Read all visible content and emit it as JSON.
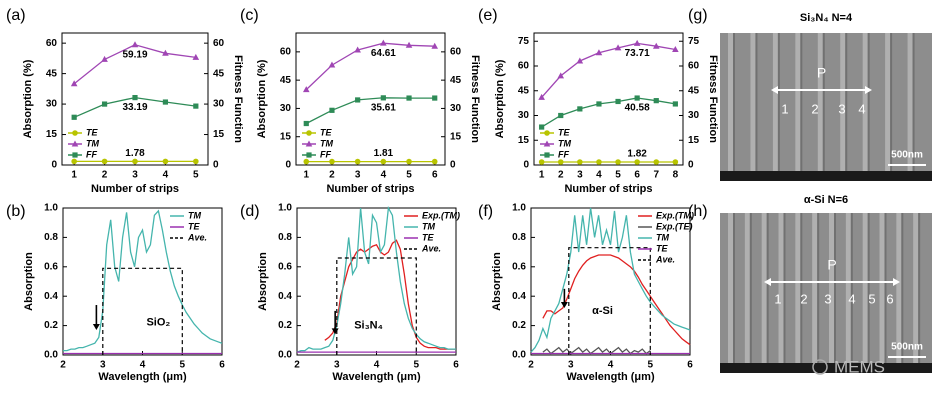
{
  "chart_data": [
    {
      "type": "line",
      "panel": "(a)",
      "x": [
        1,
        2,
        3,
        4,
        5
      ],
      "xlim": [
        0.6,
        5.4
      ],
      "xticks": [
        1,
        2,
        3,
        4,
        5
      ],
      "xlabel": "Number of strips",
      "ylabel": "Absorption (%)",
      "y2label": "Fitness Function",
      "ylim": [
        0,
        65
      ],
      "yticks": [
        0,
        15,
        30,
        45,
        60
      ],
      "y2lim": [
        0,
        65
      ],
      "y2ticks": [
        0,
        15,
        30,
        45,
        60
      ],
      "legend": "lower left",
      "data_labels": true,
      "series": [
        {
          "name": "TE",
          "color": "#b8c400",
          "marker": "circle",
          "values": [
            1.78,
            1.78,
            1.78,
            1.78,
            1.78
          ]
        },
        {
          "name": "TM",
          "color": "#a046b4",
          "marker": "triangle",
          "values": [
            40,
            52,
            59.19,
            55,
            53
          ]
        },
        {
          "name": "FF",
          "color": "#2e8b57",
          "marker": "square",
          "axis": "y2",
          "values": [
            23.5,
            30,
            33.19,
            31,
            29
          ]
        }
      ]
    },
    {
      "type": "line",
      "panel": "(b)",
      "x": [
        2,
        2.1,
        2.2,
        2.3,
        2.4,
        2.5,
        2.6,
        2.7,
        2.8,
        2.9,
        3,
        3.1,
        3.2,
        3.3,
        3.4,
        3.5,
        3.6,
        3.7,
        3.8,
        3.9,
        4,
        4.1,
        4.2,
        4.3,
        4.4,
        4.5,
        4.6,
        4.7,
        4.8,
        4.9,
        5,
        5.1,
        5.2,
        5.3,
        5.4,
        5.5,
        5.6,
        5.7,
        5.8,
        5.9,
        6
      ],
      "xlim": [
        2,
        6
      ],
      "xticks": [
        2,
        3,
        4,
        5,
        6
      ],
      "xlabel": "Wavelength (μm)",
      "ylabel": "Absorption",
      "ylim": [
        0,
        1.0
      ],
      "yticks": [
        {
          "value": 0,
          "label": "0.0"
        },
        0.2,
        0.4,
        0.6,
        0.8,
        {
          "value": 1,
          "label": "1.0"
        }
      ],
      "legend": "upper right",
      "annotation": "SiO₂",
      "series": [
        {
          "name": "TM",
          "color": "#45b5ad",
          "values": [
            0.03,
            0.03,
            0.04,
            0.04,
            0.05,
            0.05,
            0.06,
            0.07,
            0.08,
            0.12,
            0.3,
            0.75,
            0.92,
            0.6,
            0.5,
            0.8,
            0.97,
            0.7,
            0.6,
            0.8,
            0.85,
            0.7,
            0.75,
            0.95,
            0.98,
            0.85,
            0.7,
            0.57,
            0.47,
            0.4,
            0.34,
            0.29,
            0.25,
            0.21,
            0.18,
            0.15,
            0.13,
            0.11,
            0.1,
            0.09,
            0.08
          ]
        },
        {
          "name": "TE",
          "color": "#9b30b0",
          "values": [
            0.01,
            0.01,
            0.01,
            0.01,
            0.01,
            0.01,
            0.01,
            0.01,
            0.01,
            0.01,
            0.01,
            0.01,
            0.01,
            0.01,
            0.01,
            0.01,
            0.01,
            0.01,
            0.01,
            0.01,
            0.01,
            0.01,
            0.01,
            0.01,
            0.01,
            0.01,
            0.01,
            0.01,
            0.01,
            0.01,
            0.01,
            0.01,
            0.01,
            0.01,
            0.01,
            0.01,
            0.01,
            0.01,
            0.01,
            0.01,
            0.01
          ]
        },
        {
          "name": "Ave.",
          "color": "#000000",
          "dashed": true,
          "x": [
            3,
            3,
            5,
            5
          ],
          "values": [
            0,
            0.59,
            0.59,
            0
          ]
        }
      ]
    },
    {
      "type": "line",
      "panel": "(c)",
      "x": [
        1,
        2,
        3,
        4,
        5,
        6
      ],
      "xlim": [
        0.6,
        6.4
      ],
      "xticks": [
        1,
        2,
        3,
        4,
        5,
        6
      ],
      "xlabel": "Number of strips",
      "ylabel": "Absorption (%)",
      "y2label": "Fitness Function",
      "ylim": [
        0,
        70
      ],
      "yticks": [
        0,
        15,
        30,
        45,
        60
      ],
      "y2lim": [
        0,
        70
      ],
      "y2ticks": [
        0,
        15,
        30,
        45,
        60
      ],
      "legend": "lower left",
      "data_labels": true,
      "series": [
        {
          "name": "TE",
          "color": "#b8c400",
          "marker": "circle",
          "values": [
            1.81,
            1.81,
            1.81,
            1.81,
            1.81,
            1.81
          ]
        },
        {
          "name": "TM",
          "color": "#a046b4",
          "marker": "triangle",
          "values": [
            40,
            53,
            61,
            64.61,
            63.5,
            63
          ]
        },
        {
          "name": "FF",
          "color": "#2e8b57",
          "marker": "square",
          "axis": "y2",
          "values": [
            22,
            29,
            34.5,
            35.61,
            35.5,
            35.5
          ]
        }
      ]
    },
    {
      "type": "line",
      "panel": "(d)",
      "x": [
        2,
        2.1,
        2.2,
        2.3,
        2.4,
        2.5,
        2.6,
        2.7,
        2.8,
        2.9,
        3,
        3.1,
        3.2,
        3.3,
        3.4,
        3.5,
        3.6,
        3.7,
        3.8,
        3.9,
        4,
        4.1,
        4.2,
        4.3,
        4.4,
        4.5,
        4.6,
        4.7,
        4.8,
        4.9,
        5,
        5.1,
        5.2,
        5.3,
        5.4,
        5.5,
        5.6,
        5.7,
        5.8,
        5.9,
        6
      ],
      "xlim": [
        2,
        6
      ],
      "xticks": [
        2,
        3,
        4,
        5,
        6
      ],
      "xlabel": "Wavelength (μm)",
      "ylabel": "Absorption",
      "ylim": [
        0,
        1.0
      ],
      "yticks": [
        {
          "value": 0,
          "label": "0.0"
        },
        0.2,
        0.4,
        0.6,
        0.8,
        {
          "value": 1,
          "label": "1.0"
        }
      ],
      "legend": "upper right",
      "annotation": "Si₃N₄",
      "series": [
        {
          "name": "Exp.(TM)",
          "color": "#e02020",
          "values": [
            null,
            null,
            null,
            null,
            null,
            null,
            null,
            0.1,
            0.12,
            0.15,
            0.22,
            0.4,
            0.5,
            0.6,
            0.65,
            0.7,
            0.72,
            0.7,
            0.72,
            0.74,
            0.75,
            0.7,
            0.68,
            0.7,
            0.76,
            0.78,
            0.72,
            0.55,
            0.35,
            0.2,
            0.12,
            0.08,
            0.06,
            0.05,
            0.05,
            0.05,
            0.04,
            0.04,
            0.04,
            0.04,
            0.04
          ]
        },
        {
          "name": "TM",
          "color": "#45b5ad",
          "values": [
            0.02,
            0.03,
            0.03,
            0.05,
            0.04,
            0.04,
            0.04,
            0.05,
            0.06,
            0.1,
            0.2,
            0.35,
            0.55,
            0.8,
            0.55,
            0.6,
            1.0,
            0.7,
            0.62,
            0.95,
            0.9,
            0.7,
            0.75,
            1.0,
            0.95,
            0.7,
            0.5,
            0.35,
            0.25,
            0.18,
            0.14,
            0.11,
            0.09,
            0.08,
            0.07,
            0.06,
            0.05,
            0.05,
            0.04,
            0.04,
            0.04
          ]
        },
        {
          "name": "TE",
          "color": "#9b30b0",
          "values": [
            0.02,
            0.02,
            0.02,
            0.02,
            0.02,
            0.02,
            0.02,
            0.02,
            0.02,
            0.02,
            0.02,
            0.02,
            0.02,
            0.02,
            0.02,
            0.02,
            0.02,
            0.02,
            0.02,
            0.02,
            0.02,
            0.02,
            0.02,
            0.02,
            0.02,
            0.02,
            0.02,
            0.02,
            0.02,
            0.02,
            0.02,
            0.02,
            0.02,
            0.02,
            0.02,
            0.02,
            0.02,
            0.02,
            0.02,
            0.02,
            0.02
          ]
        },
        {
          "name": "Ave.",
          "color": "#000000",
          "dashed": true,
          "x": [
            3,
            3,
            5,
            5
          ],
          "values": [
            0,
            0.66,
            0.66,
            0
          ]
        }
      ]
    },
    {
      "type": "line",
      "panel": "(e)",
      "x": [
        1,
        2,
        3,
        4,
        5,
        6,
        7,
        8
      ],
      "xlim": [
        0.6,
        8.4
      ],
      "xticks": [
        1,
        2,
        3,
        4,
        5,
        6,
        7,
        8
      ],
      "xlabel": "Number of strips",
      "ylabel": "Absorption (%)",
      "y2label": "Fitness Function",
      "ylim": [
        0,
        80
      ],
      "yticks": [
        0,
        15,
        30,
        45,
        60,
        75
      ],
      "y2lim": [
        0,
        80
      ],
      "y2ticks": [
        0,
        15,
        30,
        45,
        60,
        75
      ],
      "legend": "lower left",
      "data_labels": true,
      "series": [
        {
          "name": "TE",
          "color": "#b8c400",
          "marker": "circle",
          "values": [
            1.82,
            1.82,
            1.82,
            1.82,
            1.82,
            1.82,
            1.82,
            1.82
          ]
        },
        {
          "name": "TM",
          "color": "#a046b4",
          "marker": "triangle",
          "values": [
            41,
            54,
            63,
            68,
            71,
            73.71,
            72,
            70
          ]
        },
        {
          "name": "FF",
          "color": "#2e8b57",
          "marker": "square",
          "axis": "y2",
          "values": [
            23,
            30,
            34,
            37,
            38.5,
            40.58,
            39,
            37
          ]
        }
      ]
    },
    {
      "type": "line",
      "panel": "(f)",
      "x": [
        2,
        2.1,
        2.2,
        2.3,
        2.4,
        2.5,
        2.6,
        2.7,
        2.8,
        2.9,
        3,
        3.1,
        3.2,
        3.3,
        3.4,
        3.5,
        3.6,
        3.7,
        3.8,
        3.9,
        4,
        4.1,
        4.2,
        4.3,
        4.4,
        4.5,
        4.6,
        4.7,
        4.8,
        4.9,
        5,
        5.1,
        5.2,
        5.3,
        5.4,
        5.5,
        5.6,
        5.7,
        5.8,
        5.9,
        6
      ],
      "xlim": [
        2,
        6
      ],
      "xticks": [
        2,
        3,
        4,
        5,
        6
      ],
      "xlabel": "Wavelength (μm)",
      "ylabel": "Absorption",
      "ylim": [
        0,
        1.0
      ],
      "yticks": [
        {
          "value": 0,
          "label": "0.0"
        },
        0.2,
        0.4,
        0.6,
        0.8,
        {
          "value": 1,
          "label": "1.0"
        }
      ],
      "legend": "upper right",
      "annotation": "α-Si",
      "series": [
        {
          "name": "Exp.(TM)",
          "color": "#e02020",
          "values": [
            null,
            null,
            null,
            0.25,
            0.3,
            0.3,
            0.28,
            0.3,
            0.32,
            0.38,
            0.45,
            0.52,
            0.57,
            0.61,
            0.64,
            0.66,
            0.67,
            0.68,
            0.68,
            0.68,
            0.68,
            0.67,
            0.66,
            0.64,
            0.62,
            0.6,
            0.57,
            0.53,
            0.48,
            0.44,
            0.4,
            0.36,
            0.32,
            0.28,
            0.24,
            0.2,
            0.17,
            0.14,
            0.11,
            0.09,
            0.07
          ]
        },
        {
          "name": "Exp.(TE)",
          "color": "#555555",
          "values": [
            null,
            null,
            null,
            0.02,
            0.04,
            0.01,
            0.03,
            0.05,
            0.02,
            0.04,
            0.01,
            0.03,
            0.05,
            0.02,
            0.04,
            0.01,
            0.03,
            0.05,
            0.02,
            0.04,
            0.01,
            0.03,
            0.05,
            0.02,
            0.04,
            0.01,
            0.03,
            0.02,
            0.04,
            0.01,
            0.03,
            null,
            null,
            null,
            null,
            null,
            null,
            null,
            null,
            null,
            null
          ]
        },
        {
          "name": "TM",
          "color": "#45b5ad",
          "values": [
            0.02,
            0.05,
            0.1,
            0.18,
            0.12,
            0.25,
            0.3,
            0.35,
            0.45,
            0.55,
            0.7,
            0.95,
            0.7,
            0.95,
            0.75,
            1.0,
            0.8,
            0.95,
            0.75,
            0.85,
            0.75,
            0.98,
            0.7,
            0.8,
            0.95,
            0.7,
            0.55,
            0.5,
            0.45,
            0.4,
            0.36,
            0.33,
            0.3,
            0.27,
            0.25,
            0.23,
            0.21,
            0.2,
            0.19,
            0.18,
            0.17
          ]
        },
        {
          "name": "TE",
          "color": "#9b30b0",
          "values": [
            0.01,
            0.01,
            0.01,
            0.01,
            0.01,
            0.01,
            0.01,
            0.01,
            0.01,
            0.01,
            0.01,
            0.01,
            0.01,
            0.01,
            0.01,
            0.01,
            0.01,
            0.01,
            0.01,
            0.01,
            0.01,
            0.01,
            0.01,
            0.01,
            0.01,
            0.01,
            0.01,
            0.01,
            0.01,
            0.01,
            0.01,
            0.01,
            0.01,
            0.01,
            0.01,
            0.01,
            0.01,
            0.01,
            0.01,
            0.01,
            0.01
          ]
        },
        {
          "name": "Ave.",
          "color": "#000000",
          "dashed": true,
          "x": [
            2.95,
            2.95,
            5,
            5
          ],
          "values": [
            0,
            0.73,
            0.73,
            0
          ]
        }
      ]
    }
  ],
  "images": [
    {
      "panel": "(g)",
      "title": "Si₃N₄  N=4",
      "pitch_label": "P",
      "strip_labels": [
        "1",
        "2",
        "3",
        "4"
      ],
      "scale_bar": "500nm"
    },
    {
      "panel": "(h)",
      "title": "α-Si  N=6",
      "pitch_label": "P",
      "strip_labels": [
        "1",
        "2",
        "3",
        "4",
        "5",
        "6"
      ],
      "scale_bar": "500nm"
    }
  ],
  "watermark": "MEMS"
}
